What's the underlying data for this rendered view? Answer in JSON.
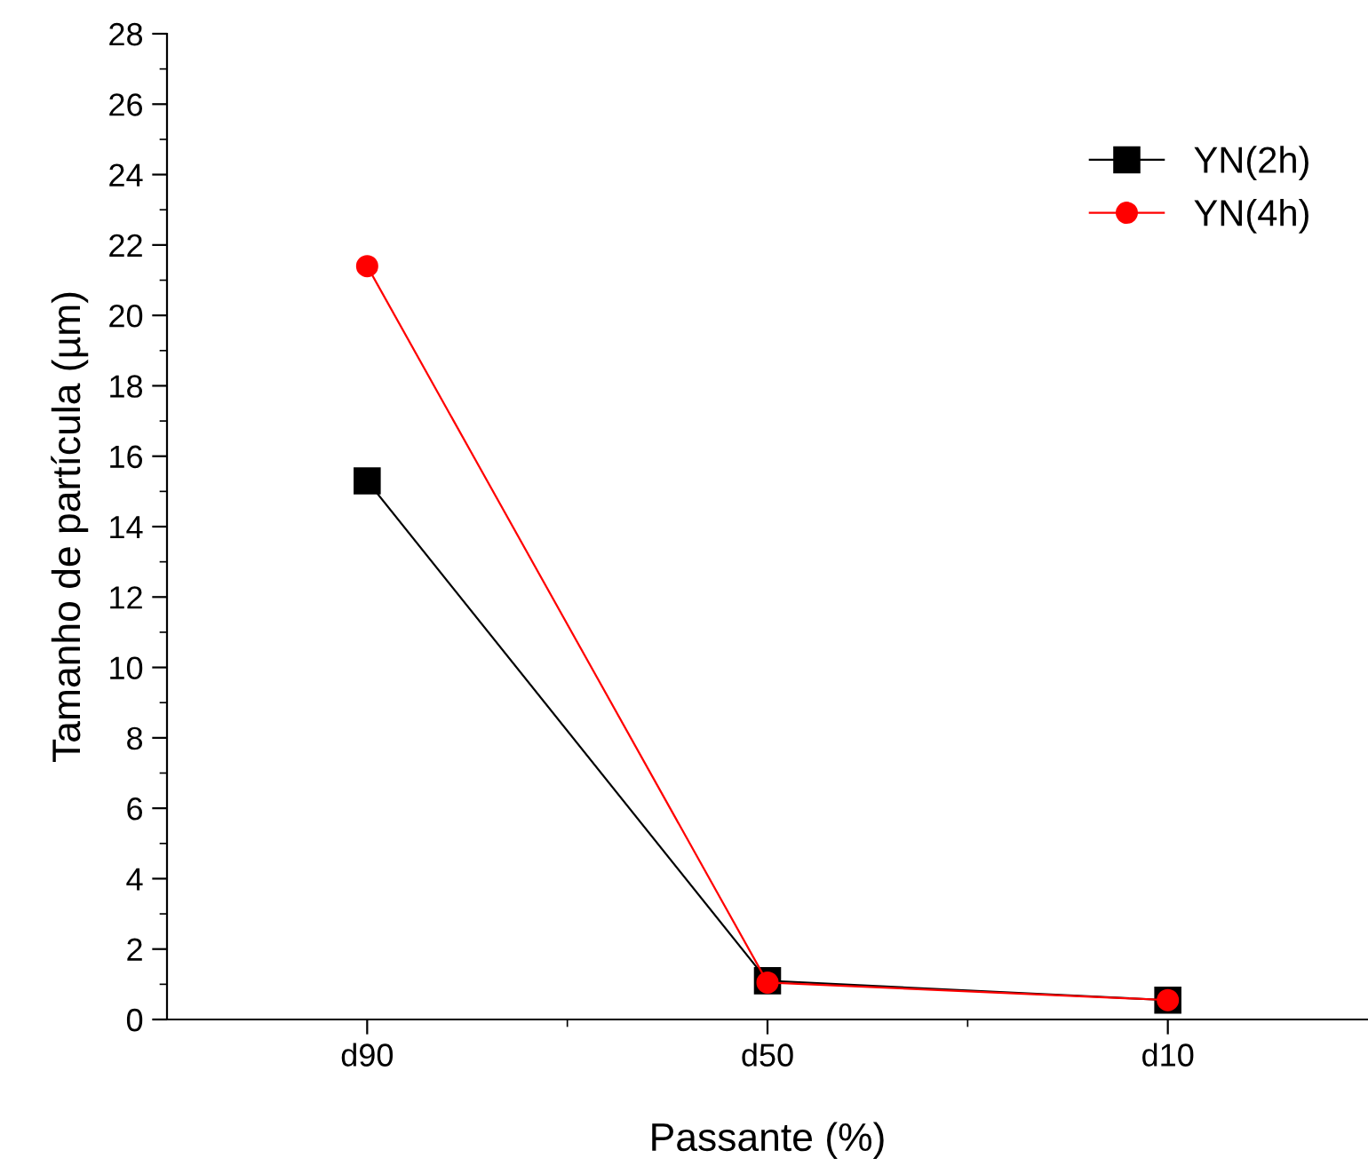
{
  "chart_data": {
    "type": "line",
    "xlabel": "Passante (%)",
    "ylabel": "Tamanho de partícula (µm)",
    "categories": [
      "d90",
      "d50",
      "d10"
    ],
    "series": [
      {
        "name": "YN(2h)",
        "color": "#000000",
        "values": [
          15.3,
          1.1,
          0.55
        ],
        "marker": "square"
      },
      {
        "name": "YN(4h)",
        "color": "#ff0000",
        "values": [
          21.4,
          1.05,
          0.55
        ],
        "marker": "circle"
      }
    ],
    "ylim": [
      0,
      28
    ],
    "yticks": [
      0,
      2,
      4,
      6,
      8,
      10,
      12,
      14,
      16,
      18,
      20,
      22,
      24,
      26,
      28
    ],
    "grid": false,
    "legend": "top right",
    "line_style": "solid"
  }
}
